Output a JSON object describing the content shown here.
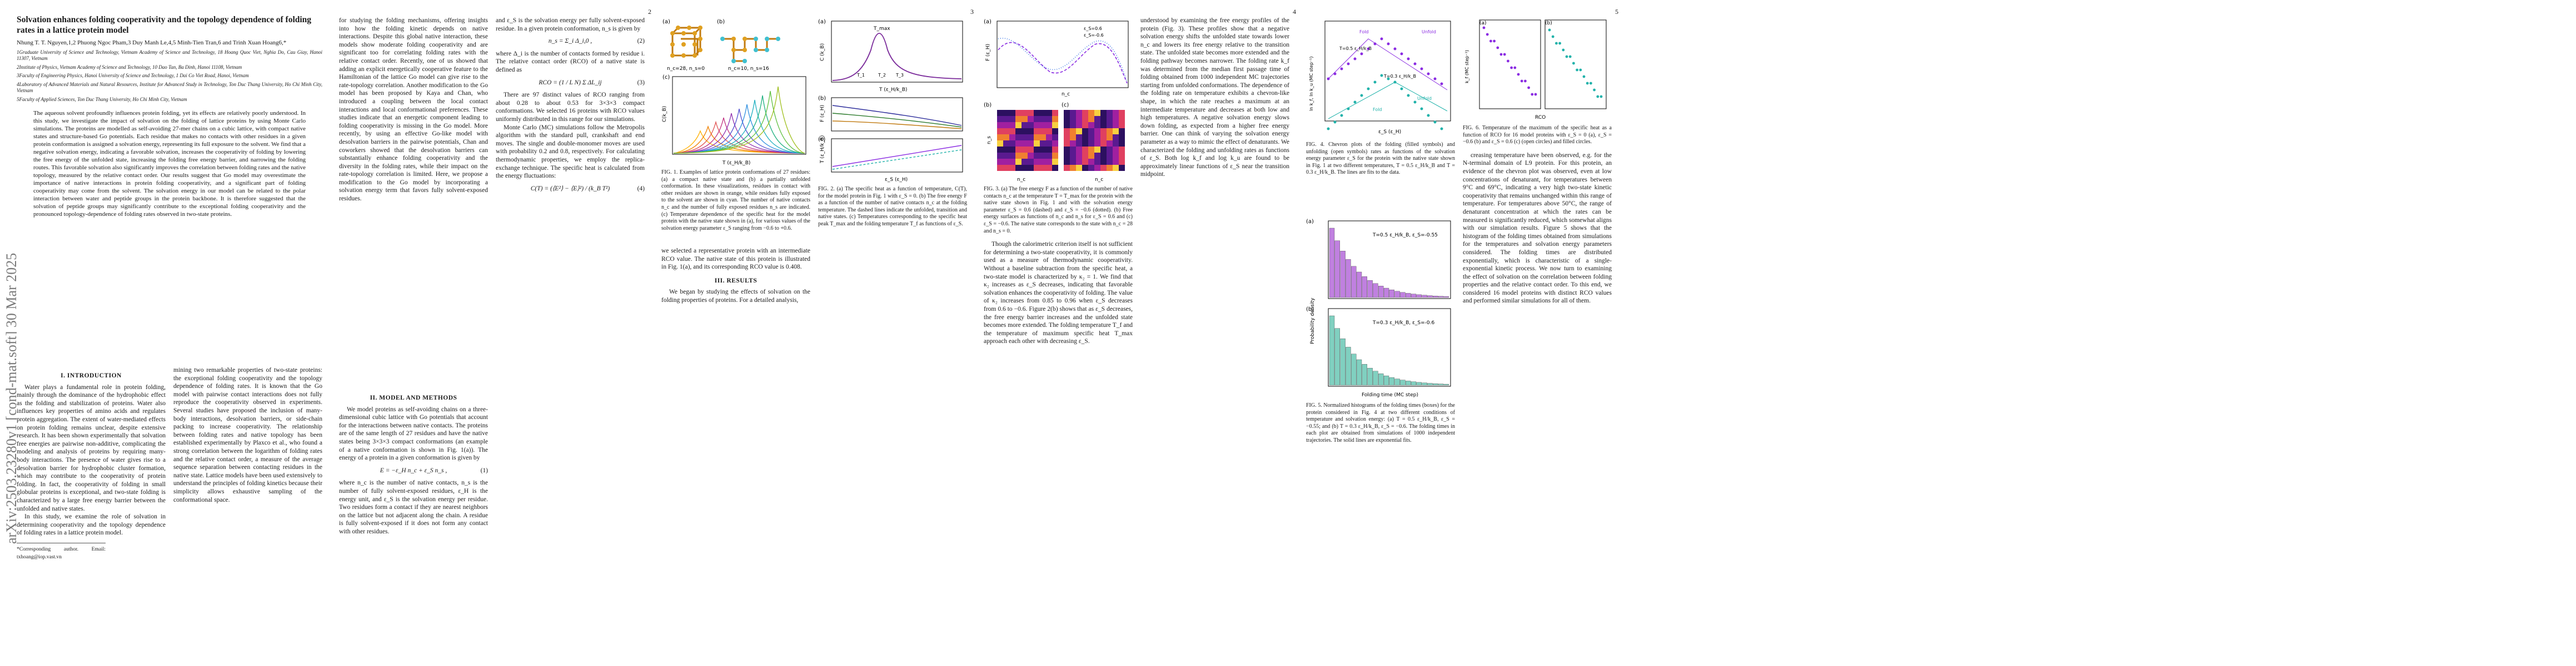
{
  "arxiv_id": "arXiv:2503.23280v1  [cond-mat.soft]  30 Mar 2025",
  "pages": [
    {
      "number": ""
    },
    {
      "number": "2"
    },
    {
      "number": "3"
    },
    {
      "number": "4"
    },
    {
      "number": "5"
    }
  ],
  "paper": {
    "title": "Solvation enhances folding cooperativity and the topology dependence of folding rates in a lattice protein model",
    "authors": "Nhung T. T. Nguyen,1,2 Phuong Ngoc Pham,3 Duy Manh Le,4,5 Minh-Tien Tran,6 and Trinh Xuan Hoang6,*",
    "affiliations": [
      "1Graduate University of Science and Technology, Vietnam Academy of Science and Technology, 18 Hoang Quoc Viet, Nghia Do, Cau Giay, Hanoi 11307, Vietnam",
      "2Institute of Physics, Vietnam Academy of Science and Technology, 10 Dao Tan, Ba Dinh, Hanoi 11108, Vietnam",
      "3Faculty of Engineering Physics, Hanoi University of Science and Technology, 1 Dai Co Viet Road, Hanoi, Vietnam",
      "4Laboratory of Advanced Materials and Natural Resources, Institute for Advanced Study in Technology, Ton Duc Thang University, Ho Chi Minh City, Vietnam",
      "5Faculty of Applied Sciences, Ton Duc Thang University, Ho Chi Minh City, Vietnam"
    ],
    "abstract": "The aqueous solvent profoundly influences protein folding, yet its effects are relatively poorly understood. In this study, we investigate the impact of solvation on the folding of lattice proteins by using Monte Carlo simulations. The proteins are modelled as self-avoiding 27-mer chains on a cubic lattice, with compact native states and structure-based Go potentials. Each residue that makes no contacts with other residues in a given protein conformation is assigned a solvation energy, representing its full exposure to the solvent. We find that a negative solvation energy, indicating a favorable solvation, increases the cooperativity of folding by lowering the free energy of the unfolded state, increasing the folding free energy barrier, and narrowing the folding routes. This favorable solvation also significantly improves the correlation between folding rates and the native topology, measured by the relative contact order. Our results suggest that Go model may overestimate the importance of native interactions in protein folding cooperativity, and a significant part of folding cooperativity may come from the solvent. The solvation energy in our model can be related to the polar interaction between water and peptide groups in the protein backbone. It is therefore suggested that the solvation of peptide groups may significantly contribute to the exceptional folding cooperativity and the pronounced topology-dependence of folding rates observed in two-state proteins.",
    "sec_intro": "I.  INTRODUCTION",
    "intro_p1": "Water plays a fundamental role in protein folding, mainly through the dominance of the hydrophobic effect as the folding and stabilization of proteins. Water also influences key properties of amino acids and regulates protein aggregation. The extent of water-mediated effects on protein folding remains unclear, despite extensive research. It has been shown experimentally that solvation free energies are pairwise non-additive, complicating the modeling and analysis of proteins by requiring many-body interactions. The presence of water gives rise to a desolvation barrier for hydrophobic cluster formation, which may contribute to the cooperativity of protein folding. In fact, the cooperativity of folding in small globular proteins is exceptional, and two-state folding is characterized by a large free energy barrier between the unfolded and native states.",
    "intro_p2": "In this study, we examine the role of solvation in determining cooperativity and the topology dependence of folding rates in a lattice protein model.",
    "footnote": "*Corresponding author. Email: txhoang@iop.vast.vn",
    "p2_colA": "mining two remarkable properties of two-state proteins: the exceptional folding cooperativity and the topology dependence of folding rates. It is known that the Go model with pairwise contact interactions does not fully reproduce the cooperativity observed in experiments. Several studies have proposed the inclusion of many-body interactions, desolvation barriers, or side-chain packing to increase cooperativity. The relationship between folding rates and native topology has been established experimentally by Plaxco et al., who found a strong correlation between the logarithm of folding rates and the relative contact order, a measure of the average sequence separation between contacting residues in the native state. Lattice models have been used extensively to understand the principles of folding kinetics because their simplicity allows exhaustive sampling of the conformational space.",
    "p2_colB": "for studying the folding mechanisms, offering insights into how the folding kinetic depends on native interactions. Despite this global native interaction, these models show moderate folding cooperativity and are significant too for correlating folding rates with the relative contact order. Recently, one of us showed that adding an explicit energetically cooperative feature to the Hamiltonian of the lattice Go model can give rise to the rate-topology correlation. Another modification to the Go model has been proposed by Kaya and Chan, who introduced a coupling between the local contact interactions and local conformational preferences. These studies indicate that an energetic component leading to folding cooperativity is missing in the Go model. More recently, by using an effective Go-like model with desolvation barriers in the pairwise potentials, Chan and coworkers showed that the desolvation barriers can substantially enhance folding cooperativity and the diversity in the folding rates, while their impact on the rate-topology correlation is limited. Here, we propose a modification to the Go model by incorporating a solvation energy term that favors fully solvent-exposed residues.",
    "sec_model": "II.  MODEL AND METHODS",
    "model_text": "We model proteins as self-avoiding chains on a three-dimensional cubic lattice with Go potentials that account for the interactions between native contacts. The proteins are of the same length of 27 residues and have the native states being 3×3×3 compact conformations (an example of a native conformation is shown in Fig. 1(a)). The energy of a protein in a given conformation is given by",
    "eq1": "E = −ε_H n_c + ε_S n_s ,",
    "eq1_num": "(1)",
    "model_text2": "where n_c is the number of native contacts, n_s is the number of fully solvent-exposed residues, ε_H is the energy unit, and ε_S is the solvation energy per residue. Two residues form a contact if they are nearest neighbors on the lattice but not adjacent along the chain. A residue is fully solvent-exposed if it does not form any contact with other residues.",
    "p3_colA": "and ε_S is the solvation energy per fully solvent-exposed residue. In a given protein conformation, n_s is given by",
    "eq2": "n_s = Σ_i Δ_i,0 ,",
    "eq2_num": "(2)",
    "p3_colA2": "where Δ_i is the number of contacts formed by residue i. The relative contact order (RCO) of a native state is defined as",
    "eq3": "RCO = (1 / L N) Σ ΔL_ij",
    "eq3_num": "(3)",
    "p3_colA3": "There are 97 distinct values of RCO ranging from about 0.28 to about 0.53 for 3×3×3 compact conformations. We selected 16 proteins with RCO values uniformly distributed in this range for our simulations.",
    "p3_colA4": "Monte Carlo (MC) simulations follow the Metropolis algorithm with the standard pull, crankshaft and end moves. The single and double-monomer moves are used with probability 0.2 and 0.8, respectively. For calculating thermodynamic properties, we employ the replica-exchange technique. The specific heat is calculated from the energy fluctuations:",
    "eq4": "C(T) = (⟨E²⟩ − ⟨E⟩²) / (k_B T²)",
    "eq4_num": "(4)",
    "fig1_caption": "FIG. 1. Examples of lattice protein conformations of 27 residues: (a) a compact native state and (b) a partially unfolded conformation. In these visualizations, residues in contact with other residues are shown in orange, while residues fully exposed to the solvent are shown in cyan. The number of native contacts n_c and the number of fully exposed residues n_s are indicated. (c) Temperature dependence of the specific heat for the model protein with the native state shown in (a), for various values of the solvation energy parameter ε_S ranging from −0.6 to +0.6.",
    "p3_colB": "we selected a representative protein with an intermediate RCO value. The native state of this protein is illustrated in Fig. 1(a), and its corresponding RCO value is 0.408.",
    "sec_results": "III.  RESULTS",
    "results_text": "We began by studying the effects of solvation on the folding properties of proteins. For a detailed analysis,",
    "fig2_caption": "FIG. 2. (a) The specific heat as a function of temperature, C(T), for the model protein in Fig. 1 with ε_S = 0. (b) The free energy F as a function of the number of native contacts n_c at the folding temperature. The dashed lines indicate the unfolded, transition and native states. (c) Temperatures corresponding to the specific heat peak T_max and the folding temperature T_f as functions of ε_S.",
    "p4_colA": "Though the calorimetric criterion itself is not sufficient for determining a two-state cooperativity, it is commonly used as a measure of thermodynamic cooperativity. Without a baseline subtraction from the specific heat, a two-state model is characterized by κ₂ = 1. We find that κ₂ increases as ε_S decreases, indicating that favorable solvation enhances the cooperativity of folding. The value of κ₂ increases from 0.85 to 0.96 when ε_S decreases from 0.6 to −0.6. Figure 2(b) shows that as ε_S decreases, the free energy barrier increases and the unfolded state becomes more extended. The folding temperature T_f and the temperature of maximum specific heat T_max approach each other with decreasing ε_S.",
    "fig3_caption": "FIG. 3. (a) The free energy F as a function of the number of native contacts n_c at the temperature T = T_max for the protein with the native state shown in Fig. 1 and with the solvation energy parameter ε_S = 0.6 (dashed) and ε_S = −0.6 (dotted). (b) Free energy surfaces as functions of n_c and n_s for ε_S = 0.6 and (c) ε_S = −0.6. The native state corresponds to the state with n_c = 28 and n_s = 0.",
    "p4_colB": "understood by examining the free energy profiles of the protein (Fig. 3). These profiles show that a negative solvation energy shifts the unfolded state towards lower n_c and lowers its free energy relative to the transition state. The unfolded state becomes more extended and the folding pathway becomes narrower. The folding rate k_f was determined from the median first passage time of folding obtained from 1000 independent MC trajectories starting from unfolded conformations. The dependence of the folding rate on temperature exhibits a chevron-like shape, in which the rate reaches a maximum at an intermediate temperature and decreases at both low and high temperatures. A negative solvation energy slows down folding, as expected from a higher free energy barrier. One can think of varying the solvation energy parameter as a way to mimic the effect of denaturants. We characterized the folding and unfolding rates as functions of ε_S. Both log k_f and log k_u are found to be approximately linear functions of ε_S near the transition midpoint.",
    "fig4_caption": "FIG. 4. Chevron plots of the folding (filled symbols) and unfolding (open symbols) rates as functions of the solvation energy parameter ε_S for the protein with the native state shown in Fig. 1 at two different temperatures, T = 0.5 ε_H/k_B and T = 0.3 ε_H/k_B. The lines are fits to the data.",
    "fig5_caption": "FIG. 5. Normalized histograms of the folding times (boxes) for the protein considered in Fig. 4 at two different conditions of temperature and solvation energy: (a) T = 0.5 ε_H/k_B, ε_S = −0.55; and (b) T = 0.3 ε_H/k_B, ε_S = −0.6. The folding times in each plot are obtained from simulations of 1000 independent trajectories. The solid lines are exponential fits.",
    "fig6_caption": "FIG. 6. Temperature of the maximum of the specific heat as a function of RCO for 16 model proteins with ε_S = 0 (a), ε_S = −0.6 (b) and ε_S = 0.6 (c) (open circles) and filled circles.",
    "p5_colB": "creasing temperature have been observed, e.g. for the N-terminal domain of L9 protein. For this protein, an evidence of the chevron plot was observed, even at low concentrations of denaturant, for temperatures between 9°C and 69°C, indicating a very high two-state kinetic cooperativity that remains unchanged within this range of temperature. For temperatures above 50°C, the range of denaturant concentration at which the rates can be measured is significantly reduced, which somewhat aligns with our simulation results. Figure 5 shows that the histogram of the folding times obtained from simulations for the temperatures and solvation energy parameters considered. The folding times are distributed exponentially, which is characteristic of a single-exponential kinetic process. We now turn to examining the effect of solvation on the correlation between folding properties and the relative contact order. To this end, we considered 16 model proteins with distinct RCO values and performed similar simulations for all of them."
  },
  "figures": {
    "fig1": {
      "labels": [
        "(a)",
        "(b)",
        "(c)"
      ],
      "a_caption": "n_c=28, n_s=0",
      "b_caption": "n_c=10, n_s=16",
      "c_ylabel": "C(k_B)",
      "c_xlabel": "T (ε_H/k_B)",
      "c_ticks_x": [
        "0.5",
        "1",
        "1.5"
      ]
    },
    "fig2": {
      "labels": [
        "(a)",
        "(b)",
        "(c)"
      ],
      "a_ylabel": "C (k_B)",
      "a_xlabel": "T (ε_H/k_B)",
      "tmax_label": "T_max",
      "markers": [
        "T_1",
        "T_2",
        "T_3"
      ],
      "b_ylabel": "F (ε_H)",
      "c_ylabel": "T (ε_H/k_B)",
      "c_xlabel": "ε_S (ε_H)"
    },
    "fig3": {
      "labels": [
        "(a)",
        "(b)",
        "(c)"
      ],
      "a_legend": [
        "ε_S=0.6",
        "ε_S=-0.6"
      ],
      "a_ylabel": "F (ε_H)",
      "a_xlabel": "n_c",
      "b_xlabel": "n_c",
      "c_xlabel": "n_c",
      "ylabel": "n_s"
    },
    "fig4": {
      "ylabel": "ln k_f, ln k_u (MC step⁻¹)",
      "xlabel": "ε_S (ε_H)",
      "labels": [
        "Fold",
        "Unfold",
        "Fold",
        "Unfold"
      ],
      "temps": [
        "T=0.5 ε_H/k_B",
        "T=0.3 ε_H/k_B"
      ]
    },
    "fig5": {
      "labels": [
        "(a)",
        "(b)"
      ],
      "a_text": "T=0.5 ε_H/k_B, ε_S=-0.55",
      "b_text": "T=0.3 ε_H/k_B, ε_S=-0.6",
      "ylabel": "Probability density",
      "xlabel": "Folding time (MC step)"
    },
    "fig6": {
      "labels": [
        "(a)",
        "(b)",
        "(c)"
      ],
      "ylabel": "k_f (MC step⁻¹)",
      "xlabel": "RCO"
    }
  },
  "colors": {
    "orange": "#e0a020",
    "cyan": "#40c0d0",
    "purple": "#8a2be2",
    "teal": "#20b2aa",
    "green": "#3cb371",
    "blue": "#1e90ff"
  }
}
